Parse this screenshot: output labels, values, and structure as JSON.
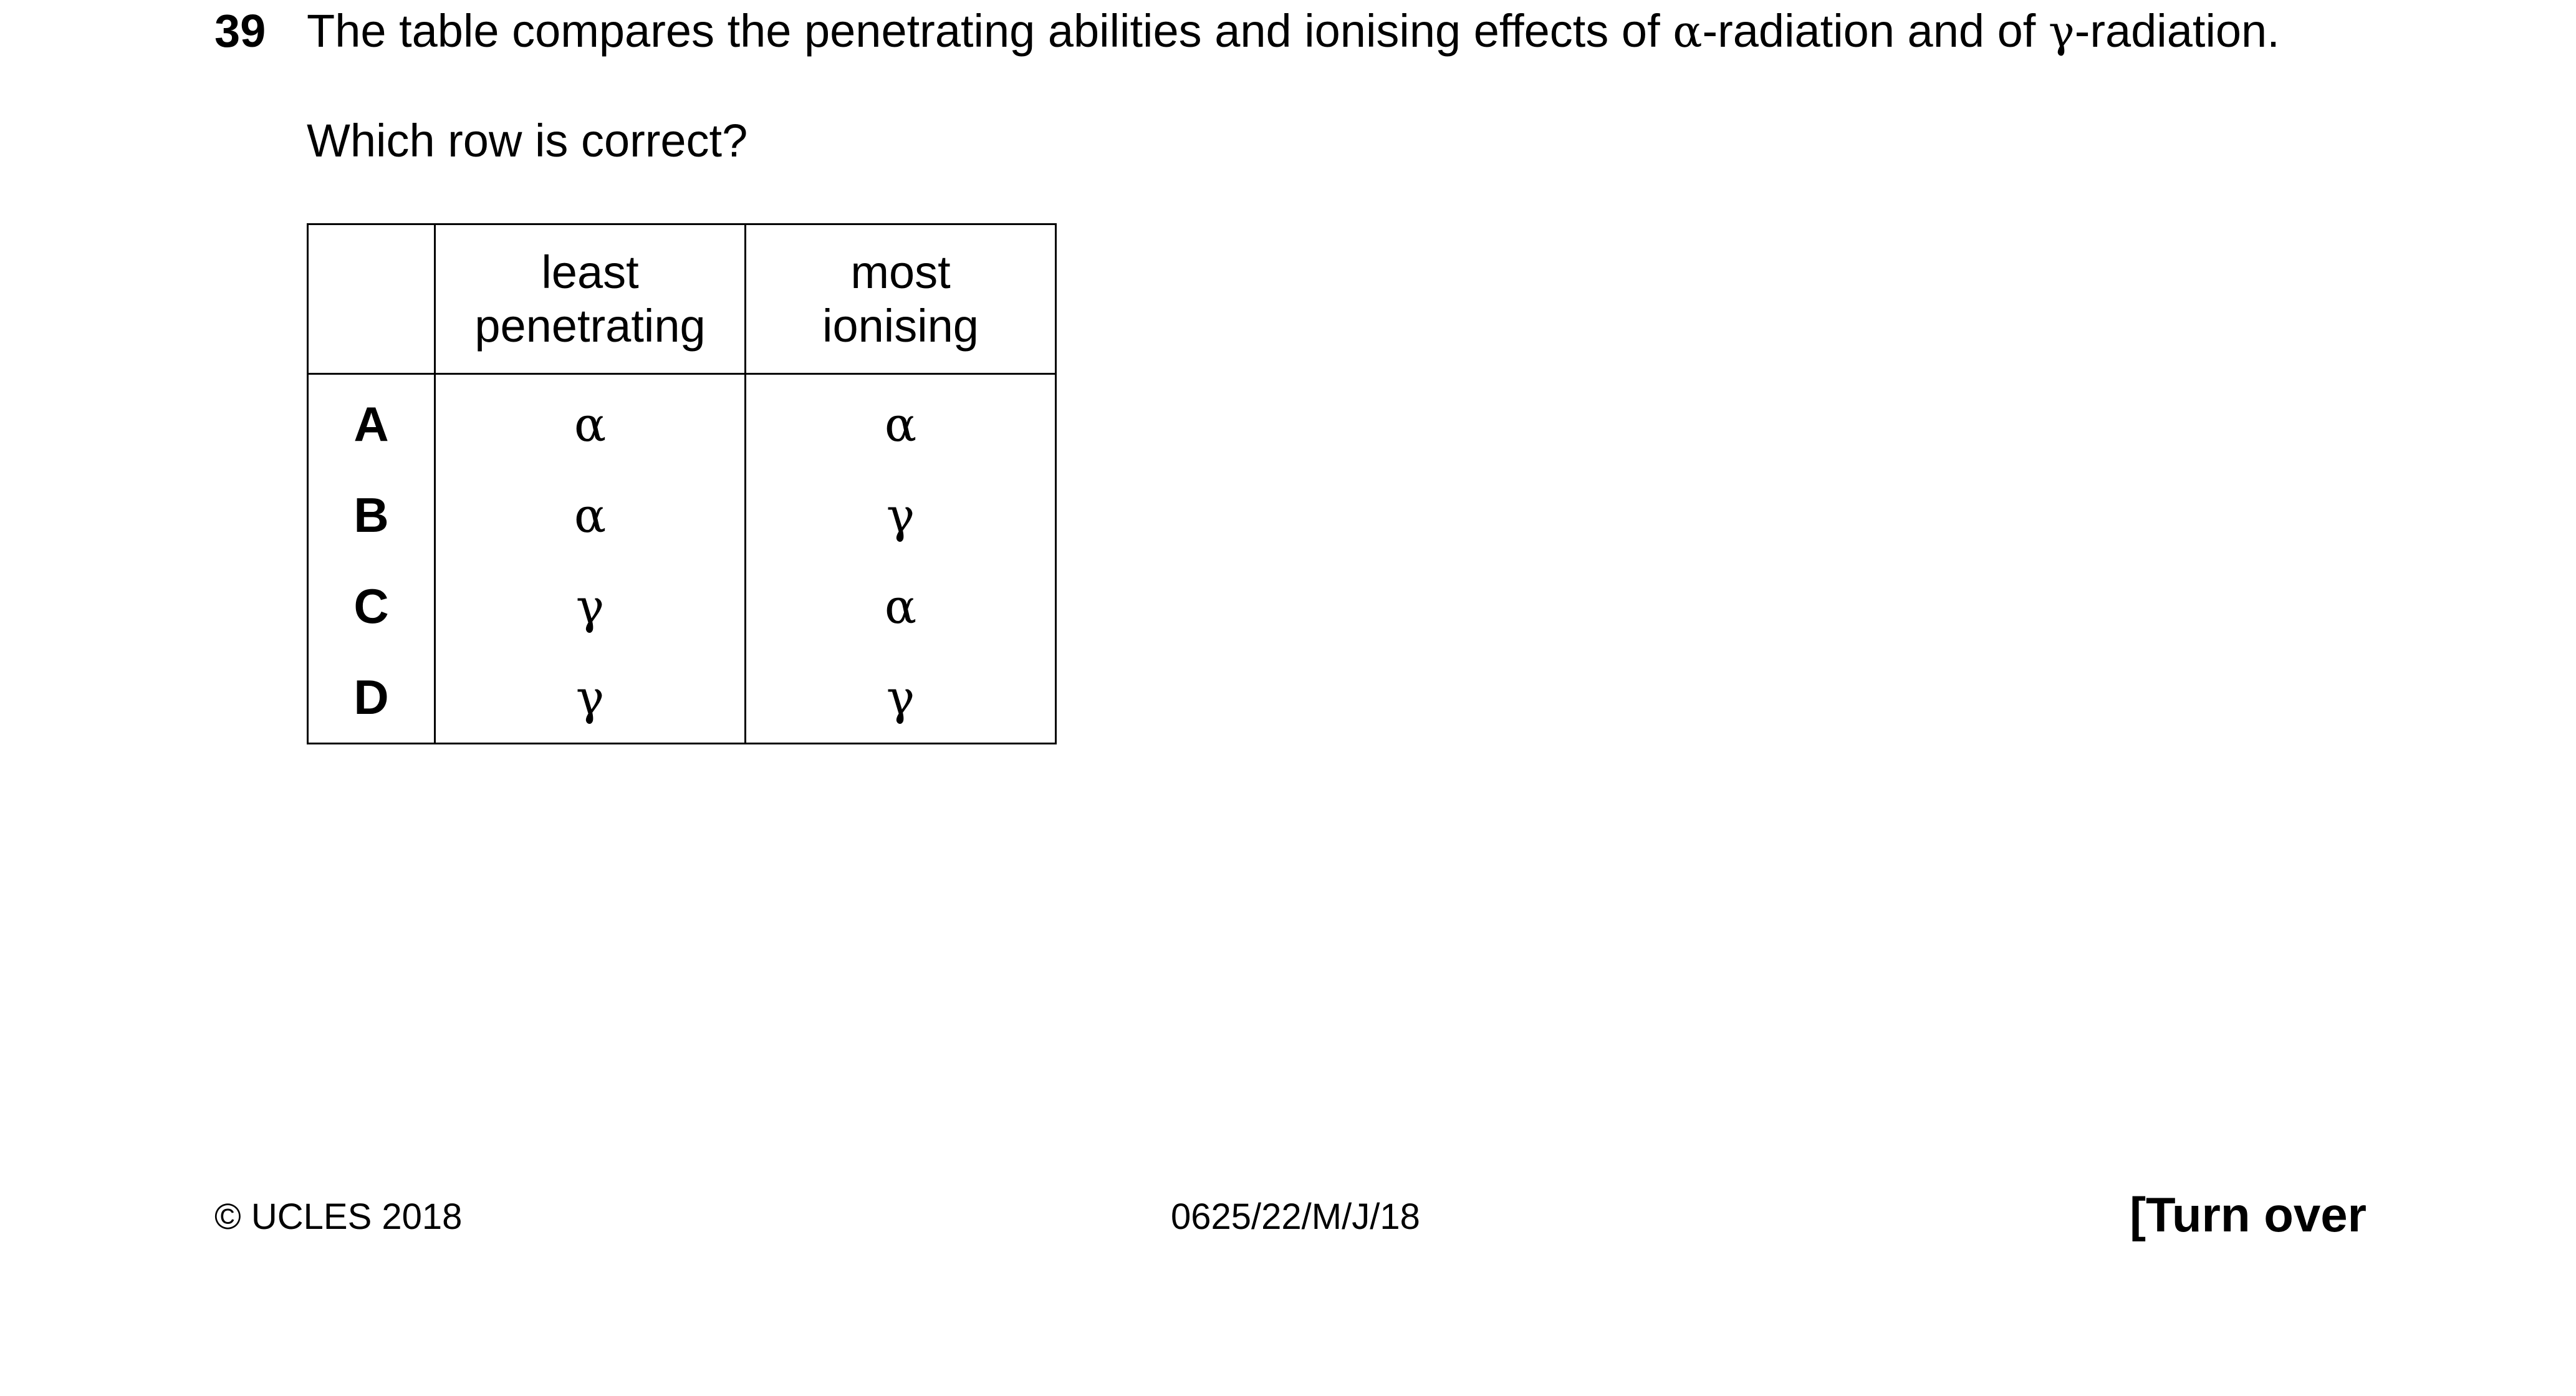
{
  "question": {
    "number": "39",
    "text_before_alpha": "The table compares the penetrating abilities and ionising effects of ",
    "alpha_symbol": "α",
    "text_between": "-radiation and of ",
    "gamma_symbol": "γ",
    "text_after_gamma": "-radiation.",
    "prompt": "Which row is correct?"
  },
  "table": {
    "headers": {
      "col1_line1": "least",
      "col1_line2": "penetrating",
      "col2_line1": "most",
      "col2_line2": "ionising"
    },
    "rows": [
      {
        "letter": "A",
        "least_penetrating": "α",
        "most_ionising": "α"
      },
      {
        "letter": "B",
        "least_penetrating": "α",
        "most_ionising": "γ"
      },
      {
        "letter": "C",
        "least_penetrating": "γ",
        "most_ionising": "α"
      },
      {
        "letter": "D",
        "least_penetrating": "γ",
        "most_ionising": "γ"
      }
    ]
  },
  "footer": {
    "copyright": "© UCLES 2018",
    "paper_code": "0625/22/M/J/18",
    "turn_over": "[Turn over"
  }
}
